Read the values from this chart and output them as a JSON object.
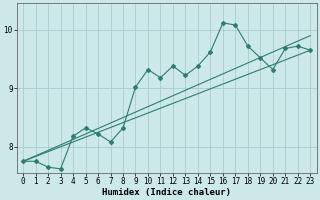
{
  "xlabel": "Humidex (Indice chaleur)",
  "ylabel": "",
  "bg_color": "#cce8e8",
  "grid_color": "#aacccc",
  "line_color": "#2e7d6e",
  "xlim": [
    -0.5,
    23.5
  ],
  "ylim": [
    7.55,
    10.45
  ],
  "xticks": [
    0,
    1,
    2,
    3,
    4,
    5,
    6,
    7,
    8,
    9,
    10,
    11,
    12,
    13,
    14,
    15,
    16,
    17,
    18,
    19,
    20,
    21,
    22,
    23
  ],
  "yticks": [
    8,
    9,
    10
  ],
  "line1_x": [
    0,
    1,
    2,
    3,
    4,
    5,
    6,
    7,
    8,
    9,
    10,
    11,
    12,
    13,
    14,
    15,
    16,
    17,
    18,
    19,
    20,
    21,
    22,
    23
  ],
  "line1_y": [
    7.75,
    7.75,
    7.65,
    7.62,
    8.18,
    8.32,
    8.22,
    8.08,
    8.32,
    9.02,
    9.32,
    9.18,
    9.38,
    9.22,
    9.38,
    9.62,
    10.12,
    10.08,
    9.72,
    9.52,
    9.32,
    9.68,
    9.72,
    9.65
  ],
  "line2_x": [
    0,
    23
  ],
  "line2_y": [
    7.75,
    9.9
  ],
  "line3_x": [
    0,
    23
  ],
  "line3_y": [
    7.75,
    9.65
  ],
  "figsize": [
    3.2,
    2.0
  ],
  "dpi": 100
}
